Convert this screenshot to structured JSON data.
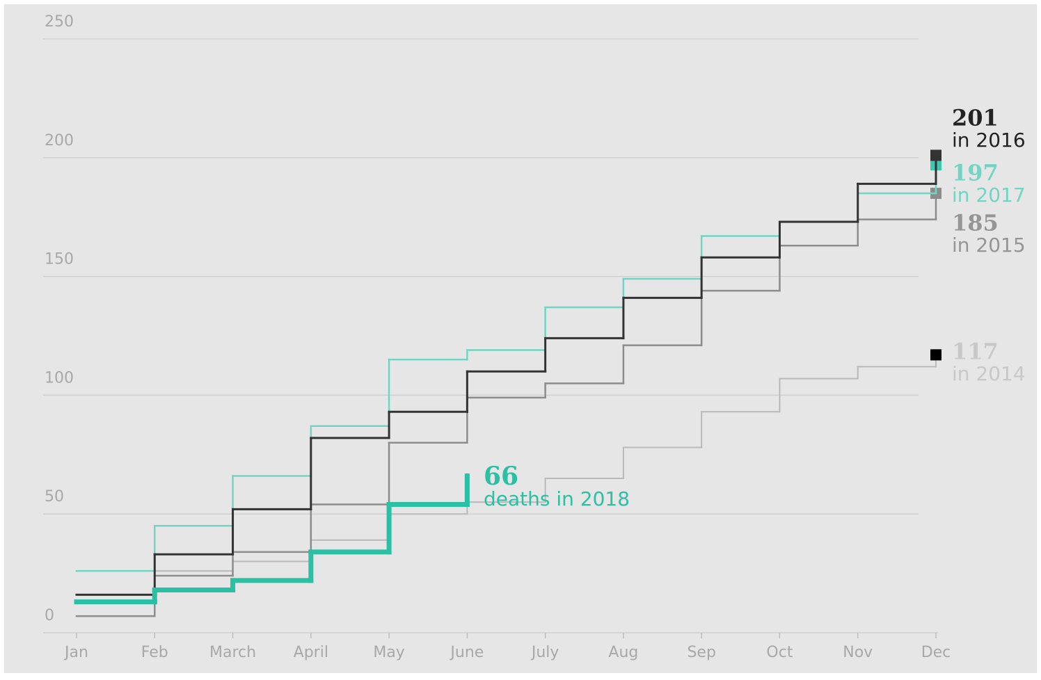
{
  "chart_data": {
    "type": "step",
    "categories": [
      "Jan",
      "Feb",
      "March",
      "April",
      "May",
      "June",
      "July",
      "Aug",
      "Sep",
      "Oct",
      "Nov",
      "Dec"
    ],
    "ylim": [
      0,
      250
    ],
    "yticks": [
      0,
      50,
      100,
      150,
      200,
      250
    ],
    "grid": true,
    "series": [
      {
        "name": "in 2014",
        "color": "#b9b9b9",
        "marker_color": "#000000",
        "width": 2,
        "values": [
          13,
          26,
          30,
          39,
          50,
          55,
          65,
          78,
          93,
          107,
          112,
          117
        ]
      },
      {
        "name": "in 2015",
        "color": "#8c8c8c",
        "marker_color": "#8c8c8c",
        "width": 2.5,
        "values": [
          7,
          24,
          34,
          54,
          80,
          99,
          105,
          121,
          144,
          163,
          174,
          185
        ]
      },
      {
        "name": "in 2017",
        "color": "#72d4c3",
        "marker_color": "#3cc7ae",
        "width": 2.5,
        "values": [
          26,
          45,
          66,
          87,
          115,
          119,
          137,
          149,
          167,
          173,
          185,
          197
        ]
      },
      {
        "name": "in 2016",
        "color": "#333333",
        "marker_color": "#333333",
        "width": 3,
        "values": [
          16,
          33,
          52,
          82,
          93,
          110,
          124,
          141,
          158,
          173,
          189,
          201
        ]
      },
      {
        "name": "deaths in 2018",
        "color": "#2bbfa4",
        "width": 7,
        "values": [
          13,
          18,
          22,
          34,
          54,
          66,
          null,
          null,
          null,
          null,
          null,
          null
        ]
      }
    ]
  }
}
